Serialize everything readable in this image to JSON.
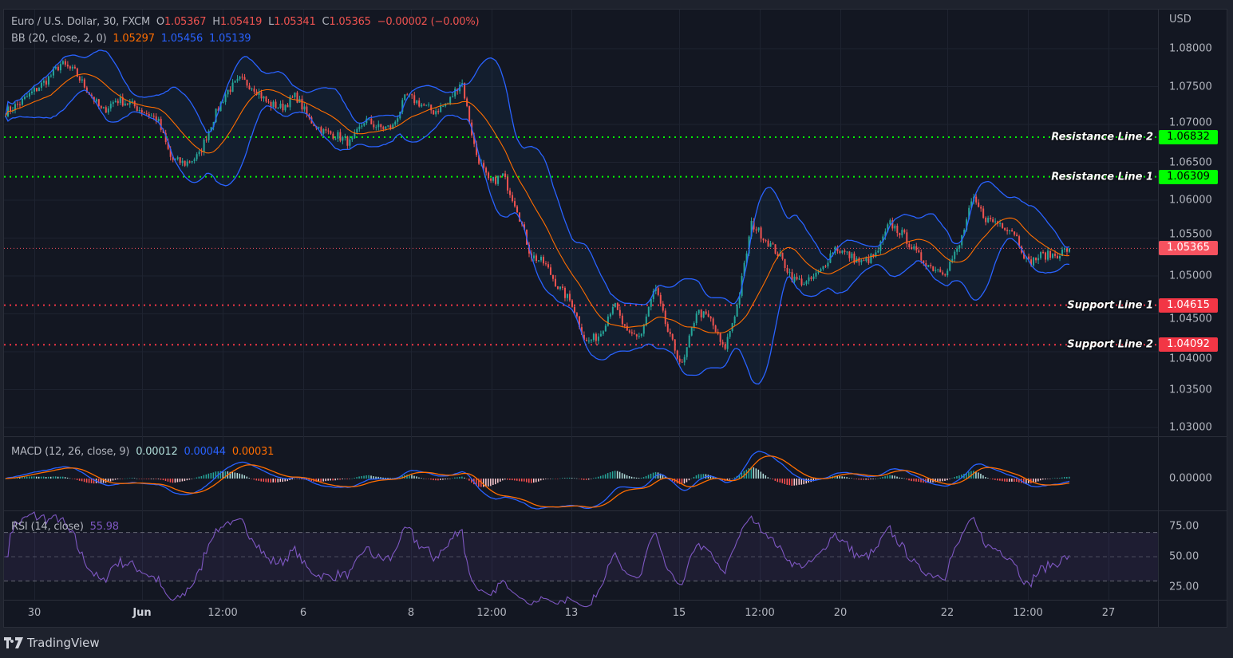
{
  "header": {
    "symbol": "Euro / U.S. Dollar, 30, FXCM",
    "open_label": "O",
    "open": "1.05367",
    "high_label": "H",
    "high": "1.05419",
    "low_label": "L",
    "low": "1.05341",
    "close_label": "C",
    "close": "1.05365",
    "change": "−0.00002 (−0.00%)"
  },
  "indicators": {
    "bb": {
      "label": "BB (20, close, 2, 0)",
      "basis": "1.05297",
      "upper": "1.05456",
      "lower": "1.05139"
    },
    "macd": {
      "label": "MACD (12, 26, close, 9)",
      "histogram": "0.00012",
      "macd": "0.00044",
      "signal": "0.00031"
    },
    "rsi": {
      "label": "RSI (14, close)",
      "value": "55.98"
    }
  },
  "price_axis": {
    "currency": "USD",
    "ticks": [
      "1.08000",
      "1.07500",
      "1.07000",
      "1.06500",
      "1.06000",
      "1.05500",
      "1.05000",
      "1.04500",
      "1.04000",
      "1.03500",
      "1.03000"
    ]
  },
  "macd_axis": {
    "ticks": [
      "0.00000"
    ]
  },
  "rsi_axis": {
    "ticks": [
      "75.00",
      "50.00",
      "25.00"
    ]
  },
  "time_axis": {
    "ticks": [
      "30",
      "Jun",
      "12:00",
      "6",
      "8",
      "12:00",
      "13",
      "15",
      "12:00",
      "20",
      "22",
      "12:00",
      "27"
    ]
  },
  "horizontal_lines": [
    {
      "label": "Resistance Line 2",
      "value": "1.06832",
      "color": "#00ff00"
    },
    {
      "label": "Resistance Line 1",
      "value": "1.06309",
      "color": "#00ff00"
    },
    {
      "label": "Support Line 1",
      "value": "1.04615",
      "color": "#f23645"
    },
    {
      "label": "Support Line 2",
      "value": "1.04092",
      "color": "#f23645"
    }
  ],
  "last_price": {
    "value": "1.05365",
    "color": "#f7525f"
  },
  "colors": {
    "up": "#26a69a",
    "down": "#ef5350",
    "bb_basis": "#ff6d00",
    "bb_bands": "#2962ff",
    "macd": "#2962ff",
    "signal": "#ff6d00",
    "rsi": "#7e57c2"
  },
  "footer": {
    "brand": "TradingView"
  },
  "chart_data": {
    "type": "candlestick",
    "title": "Euro / U.S. Dollar, 30, FXCM",
    "interval": "30",
    "ylabel": "USD",
    "ylim": [
      1.03,
      1.08
    ],
    "x_tick_labels": [
      "30",
      "Jun",
      "12:00",
      "6",
      "8",
      "12:00",
      "13",
      "15",
      "12:00",
      "20",
      "22",
      "12:00",
      "27"
    ],
    "grid": true,
    "approx_close_path": [
      1.07168,
      1.07274,
      1.07432,
      1.07589,
      1.078,
      1.07695,
      1.07432,
      1.07168,
      1.07326,
      1.07274,
      1.07168,
      1.07063,
      1.06537,
      1.06484,
      1.06589,
      1.07063,
      1.07432,
      1.07589,
      1.07484,
      1.07274,
      1.07221,
      1.07379,
      1.07063,
      1.06905,
      1.06853,
      1.06747,
      1.07063,
      1.06958,
      1.06958,
      1.07379,
      1.07274,
      1.07168,
      1.07274,
      1.07589,
      1.06642,
      1.06221,
      1.06326,
      1.05905,
      1.05274,
      1.05168,
      1.04853,
      1.04642,
      1.04116,
      1.04221,
      1.04642,
      1.04221,
      1.04221,
      1.04853,
      1.04221,
      1.038,
      1.04537,
      1.04432,
      1.04011,
      1.04642,
      1.05695,
      1.05484,
      1.05274,
      1.04958,
      1.04905,
      1.05063,
      1.05379,
      1.05274,
      1.05168,
      1.05274,
      1.05695,
      1.05537,
      1.05274,
      1.05116,
      1.05063,
      1.05379,
      1.06011,
      1.05747,
      1.05695,
      1.05589,
      1.05168,
      1.05274,
      1.05274,
      1.05365
    ],
    "rsi_levels": [
      70,
      50,
      30
    ],
    "rsi_ylim": [
      0,
      100
    ]
  }
}
